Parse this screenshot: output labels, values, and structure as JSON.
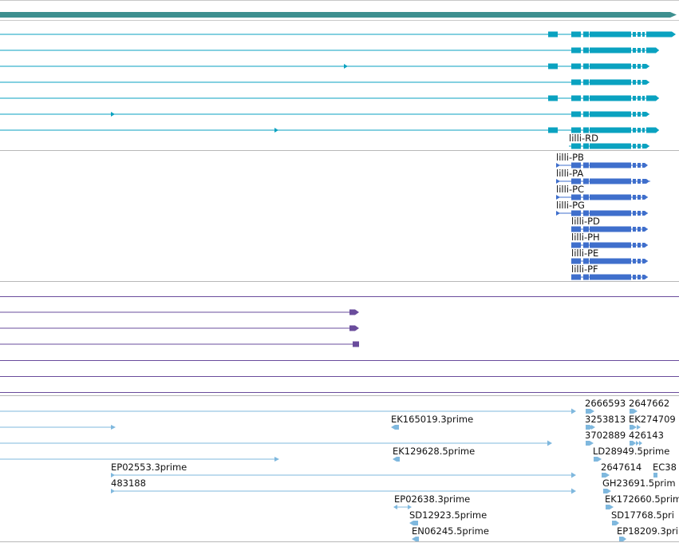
{
  "colors": {
    "top_bar": "#3d8f8f",
    "transcript_teal": "#0aa2c0",
    "transcript_blue": "#3f6fcc",
    "purple": "#6a4c9c",
    "light_blue": "#7fb8de",
    "separator": "#b8b8b8",
    "label": "#111111"
  },
  "tracks": {
    "transcripts_labels": [
      "lilli-RD",
      "lilli-PB",
      "lilli-PA",
      "lilli-PC",
      "lilli-PG",
      "lilli-PD",
      "lilli-PH",
      "lilli-PE",
      "lilli-PF"
    ],
    "est_labels": {
      "r1": "2666593",
      "r1b": "2647662",
      "r2a": "EK165019.3prime",
      "r2b": "3253813",
      "r2c": "EK274709",
      "r3": "3702889",
      "r3b": "426143",
      "r4a": "EK129628.5prime",
      "r4b": "LD28949.5prime",
      "r5a": "EP02553.3prime",
      "r5b": "2647614",
      "r5c": "EC38",
      "r6a": "483188",
      "r6b": "GH23691.5prim",
      "r7a": "EP02638.3prime",
      "r7b": "EK172660.5prim",
      "r8a": "SD12923.5prime",
      "r8b": "SD17768.5pri",
      "r9a": "EN06245.5prime",
      "r9b": "EP18209.3pri"
    }
  }
}
